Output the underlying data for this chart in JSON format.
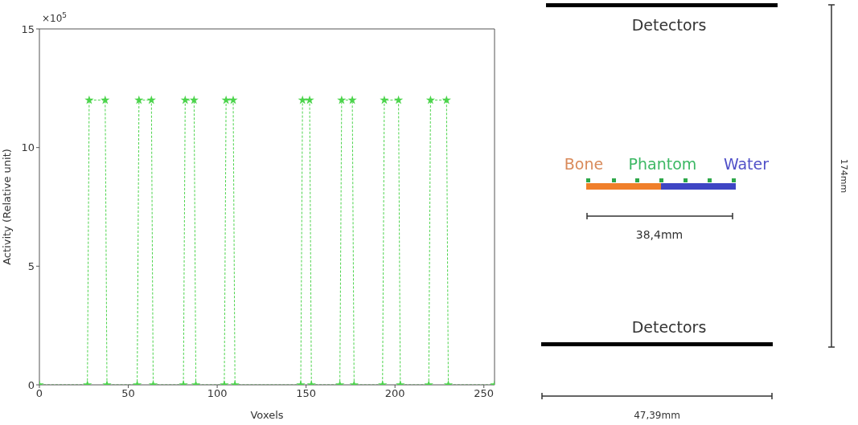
{
  "chart_data": {
    "type": "line",
    "xlabel": "Voxels",
    "ylabel": "Activity (Relative unit)",
    "annotations": [
      "×10$^{5}$",
      "Detectors",
      "Bone",
      "Phantom",
      "Water",
      "38,4mm",
      "Detectors",
      "47,39mm",
      "174mm"
    ],
    "x": [
      0,
      27,
      28,
      37,
      38,
      55,
      56,
      63,
      64,
      81,
      82,
      87,
      88,
      104,
      105,
      109,
      110,
      147,
      148,
      152,
      153,
      169,
      170,
      176,
      177,
      193,
      194,
      202,
      203,
      219,
      220,
      229,
      230,
      256
    ],
    "series": [
      {
        "color": "#4cd44c",
        "values": [
          0,
          0,
          12,
          12,
          0,
          0,
          12,
          12,
          0,
          0,
          12,
          12,
          0,
          0,
          12,
          12,
          0,
          0,
          12,
          12,
          0,
          0,
          12,
          12,
          0,
          0,
          12,
          12,
          0,
          0,
          12,
          12,
          0,
          0
        ]
      }
    ],
    "xlim": [
      0,
      256
    ],
    "xticks": [
      0,
      50,
      100,
      150,
      200,
      250
    ],
    "ylim": [
      0,
      15
    ],
    "yticks": [
      0,
      5,
      10,
      15
    ],
    "marker": "star",
    "line_style": "dashed"
  }
}
